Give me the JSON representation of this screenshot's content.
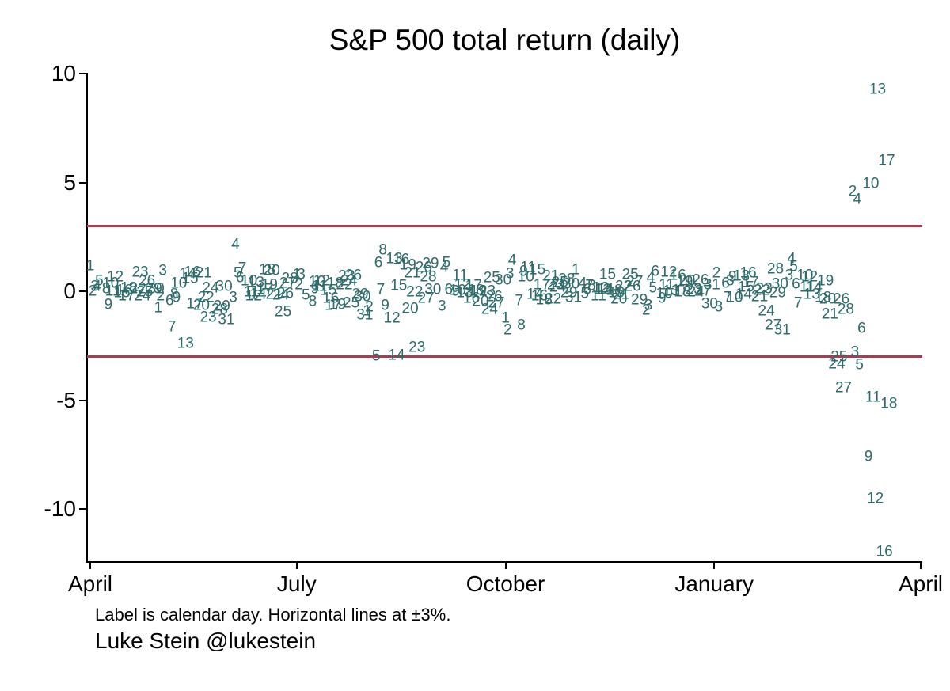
{
  "title": "S&P 500 total return (daily)",
  "footnote": "Label is calendar day. Horizontal lines at ±3%.",
  "attribution": "Luke Stein @lukestein",
  "colors": {
    "marker": "#2e6b6b",
    "ref_line": "#b0394a",
    "axis": "#000000"
  },
  "chart_data": {
    "type": "scatter",
    "title": "S&P 500 total return (daily)",
    "marker_style": "text-label-of-calendar-day",
    "xlabel": "",
    "ylabel": "",
    "grid": false,
    "legend": "none",
    "x_axis": {
      "tick_labels": [
        "April",
        "July",
        "October",
        "January",
        "April"
      ],
      "tick_dates": [
        "2019-04-01",
        "2019-07-01",
        "2019-10-01",
        "2020-01-01",
        "2020-04-01"
      ]
    },
    "y_axis": {
      "ticks": [
        10,
        5,
        0,
        -5,
        -10
      ],
      "range": [
        -12.6,
        10.4
      ],
      "unit": "percent"
    },
    "ref_lines_pct": [
      3,
      -3
    ],
    "series": [
      {
        "month": "2019-04",
        "days": [
          1,
          2,
          3,
          4,
          5,
          8,
          9,
          10,
          11,
          12,
          15,
          16,
          17,
          18,
          22,
          23,
          24,
          25,
          26,
          29,
          30
        ],
        "returns_pct": [
          1.16,
          0.0,
          0.21,
          0.21,
          0.46,
          0.1,
          -0.61,
          0.35,
          0.0,
          0.66,
          -0.06,
          0.05,
          -0.23,
          0.16,
          0.1,
          0.88,
          -0.22,
          -0.04,
          0.47,
          0.11,
          0.1
        ]
      },
      {
        "month": "2019-05",
        "days": [
          1,
          2,
          3,
          6,
          7,
          8,
          9,
          10,
          13,
          14,
          15,
          16,
          17,
          20,
          21,
          22,
          23,
          24,
          28,
          29,
          30,
          31
        ],
        "returns_pct": [
          -0.75,
          -0.21,
          0.96,
          -0.45,
          -1.65,
          -0.16,
          -0.3,
          0.37,
          -2.41,
          0.8,
          0.58,
          0.89,
          -0.58,
          -0.67,
          0.85,
          -0.28,
          -1.19,
          0.14,
          -0.84,
          -0.69,
          0.21,
          -1.32
        ]
      },
      {
        "month": "2019-06",
        "days": [
          3,
          4,
          5,
          6,
          7,
          10,
          11,
          12,
          13,
          14,
          17,
          18,
          19,
          20,
          21,
          24,
          25,
          26,
          27,
          28
        ],
        "returns_pct": [
          -0.28,
          2.14,
          0.82,
          0.61,
          1.05,
          0.47,
          -0.03,
          -0.2,
          0.41,
          -0.16,
          0.09,
          0.97,
          0.3,
          0.95,
          -0.13,
          -0.17,
          -0.95,
          -0.12,
          0.38,
          0.58
        ]
      },
      {
        "month": "2019-07",
        "days": [
          1,
          2,
          3,
          5,
          8,
          9,
          10,
          11,
          12,
          15,
          16,
          17,
          18,
          19,
          22,
          23,
          24,
          25,
          26,
          29,
          30,
          31
        ],
        "returns_pct": [
          0.77,
          0.29,
          0.77,
          -0.18,
          -0.48,
          0.12,
          0.45,
          0.23,
          0.46,
          0.02,
          -0.34,
          -0.65,
          0.36,
          -0.62,
          0.28,
          0.68,
          0.47,
          -0.53,
          0.74,
          -0.16,
          -0.26,
          -1.09
        ]
      },
      {
        "month": "2019-08",
        "days": [
          1,
          2,
          5,
          6,
          7,
          8,
          9,
          12,
          13,
          14,
          15,
          16,
          19,
          20,
          21,
          22,
          23,
          26,
          27,
          28,
          29,
          30
        ],
        "returns_pct": [
          -0.9,
          -0.73,
          -2.98,
          1.3,
          0.08,
          1.88,
          -0.66,
          -1.22,
          1.48,
          -2.93,
          0.25,
          1.44,
          1.21,
          -0.79,
          0.82,
          -0.05,
          -2.59,
          1.1,
          -0.32,
          0.65,
          1.27,
          0.06
        ]
      },
      {
        "month": "2019-09",
        "days": [
          3,
          4,
          5,
          6,
          9,
          10,
          11,
          12,
          13,
          16,
          17,
          18,
          19,
          20,
          23,
          24,
          25,
          26,
          27,
          30
        ],
        "returns_pct": [
          -0.69,
          1.08,
          1.3,
          0.09,
          -0.01,
          0.03,
          0.72,
          0.29,
          -0.07,
          -0.31,
          0.26,
          0.03,
          0.0,
          -0.49,
          -0.01,
          -0.84,
          0.62,
          -0.24,
          -0.53,
          0.5
        ]
      },
      {
        "month": "2019-10",
        "days": [
          1,
          2,
          3,
          4,
          7,
          8,
          9,
          10,
          11,
          14,
          15,
          16,
          17,
          18,
          21,
          22,
          23,
          24,
          25,
          28,
          29,
          30,
          31
        ],
        "returns_pct": [
          -1.23,
          -1.79,
          0.8,
          1.42,
          -0.45,
          -1.56,
          0.91,
          0.64,
          1.09,
          -0.14,
          1.0,
          -0.2,
          0.28,
          -0.39,
          0.69,
          -0.36,
          0.28,
          0.19,
          0.41,
          0.56,
          -0.08,
          0.33,
          -0.3
        ]
      },
      {
        "month": "2019-11",
        "days": [
          1,
          4,
          5,
          6,
          7,
          8,
          11,
          12,
          13,
          14,
          15,
          18,
          19,
          20,
          21,
          22,
          25,
          26,
          27,
          29
        ],
        "returns_pct": [
          0.97,
          0.37,
          -0.12,
          0.07,
          0.27,
          0.26,
          -0.2,
          0.16,
          0.07,
          0.08,
          0.77,
          0.05,
          -0.06,
          -0.38,
          -0.16,
          0.22,
          0.75,
          0.22,
          0.42,
          -0.4
        ]
      },
      {
        "month": "2019-12",
        "days": [
          2,
          3,
          4,
          5,
          6,
          9,
          10,
          11,
          12,
          13,
          16,
          17,
          18,
          19,
          20,
          23,
          24,
          26,
          27,
          30,
          31
        ],
        "returns_pct": [
          -0.86,
          -0.66,
          0.63,
          0.15,
          0.91,
          -0.32,
          -0.11,
          0.29,
          0.86,
          0.01,
          0.71,
          0.03,
          -0.04,
          0.45,
          0.49,
          0.09,
          -0.02,
          0.51,
          0.0,
          -0.58,
          0.29
        ]
      },
      {
        "month": "2020-01",
        "days": [
          2,
          3,
          6,
          7,
          8,
          9,
          10,
          13,
          14,
          15,
          16,
          17,
          21,
          22,
          23,
          24,
          27,
          28,
          29,
          30,
          31
        ],
        "returns_pct": [
          0.84,
          -0.71,
          0.35,
          -0.28,
          0.49,
          0.67,
          -0.29,
          0.7,
          -0.15,
          0.19,
          0.84,
          0.39,
          -0.27,
          0.03,
          0.11,
          -0.9,
          -1.57,
          1.01,
          -0.09,
          0.31,
          -1.77
        ]
      },
      {
        "month": "2020-02",
        "days": [
          3,
          4,
          5,
          6,
          7,
          10,
          11,
          12,
          13,
          14,
          18,
          19,
          20,
          21,
          24,
          25,
          26,
          27,
          28
        ],
        "returns_pct": [
          0.73,
          1.5,
          1.13,
          0.33,
          -0.54,
          0.73,
          0.17,
          0.65,
          -0.16,
          0.18,
          -0.29,
          0.47,
          -0.38,
          -1.05,
          -3.35,
          -3.03,
          -0.38,
          -4.42,
          -0.82
        ]
      },
      {
        "month": "2020-03",
        "days": [
          2,
          3,
          4,
          5,
          6,
          9,
          10,
          11,
          12,
          13,
          16,
          17,
          18
        ],
        "returns_pct": [
          4.6,
          -2.81,
          4.22,
          -3.39,
          -1.71,
          -7.6,
          4.94,
          -4.89,
          -9.51,
          9.29,
          -11.98,
          6.0,
          -5.18
        ]
      }
    ]
  }
}
